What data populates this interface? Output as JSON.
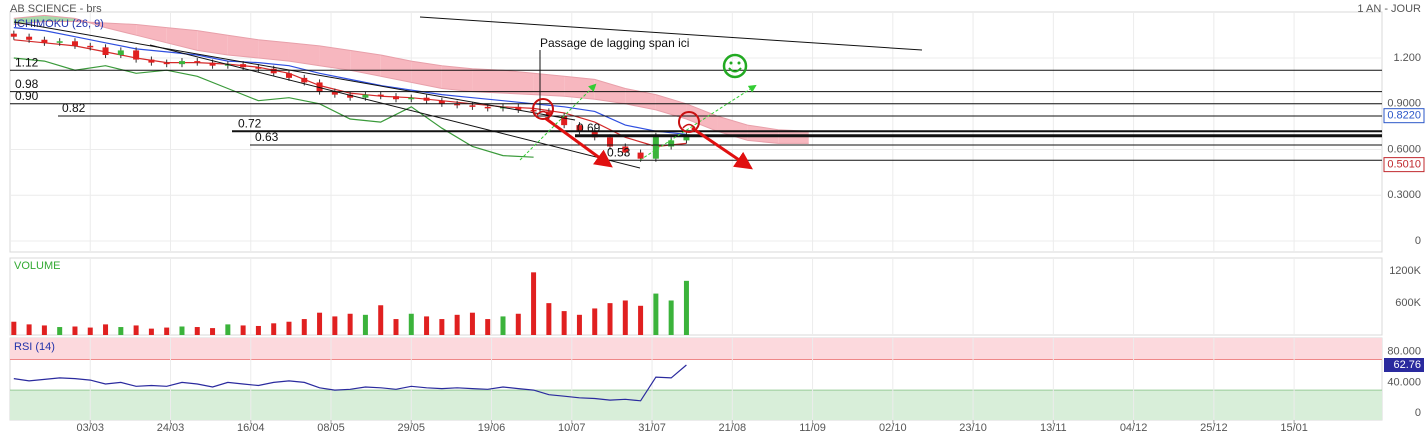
{
  "chart_data": [
    {
      "type": "candlestick",
      "title": "AB SCIENCE - brs",
      "subtitle": "1 AN - JOUR",
      "panel_title": "ICHIMOKU (26, 9)",
      "annotations": [
        "Passage de lagging span ici"
      ],
      "xlim": [
        -1,
        358
      ],
      "ylim": [
        -0.072,
        1.502
      ],
      "yticks": [
        0,
        {
          "value": 0.3,
          "label": "0.3000"
        },
        {
          "value": 0.6,
          "label": "0.6000"
        },
        {
          "value": 0.9,
          "label": "0.9000"
        },
        {
          "value": 1.2,
          "label": "1.200"
        }
      ],
      "grid": true,
      "up_color": "#3bb33b",
      "down_color": "#e02020",
      "candles": {
        "x": [
          0,
          4,
          8,
          12,
          16,
          20,
          24,
          28,
          32,
          36,
          40,
          44,
          48,
          52,
          56,
          60,
          64,
          68,
          72,
          76,
          80,
          84,
          88,
          92,
          96,
          100,
          104,
          108,
          112,
          116,
          120,
          124,
          128,
          132,
          136,
          140,
          144,
          148,
          152,
          156,
          160,
          164,
          168,
          172,
          176
        ],
        "open": [
          1.36,
          1.34,
          1.32,
          1.3,
          1.31,
          1.28,
          1.27,
          1.22,
          1.25,
          1.19,
          1.17,
          1.16,
          1.18,
          1.17,
          1.15,
          1.16,
          1.14,
          1.13,
          1.1,
          1.07,
          1.04,
          0.98,
          0.96,
          0.94,
          0.96,
          0.95,
          0.93,
          0.94,
          0.92,
          0.9,
          0.89,
          0.88,
          0.87,
          0.88,
          0.86,
          0.85,
          0.82,
          0.76,
          0.72,
          0.68,
          0.62,
          0.58,
          0.54,
          0.62,
          0.66
        ],
        "high": [
          1.38,
          1.36,
          1.34,
          1.33,
          1.33,
          1.3,
          1.29,
          1.27,
          1.27,
          1.21,
          1.19,
          1.2,
          1.2,
          1.19,
          1.18,
          1.18,
          1.16,
          1.15,
          1.12,
          1.09,
          1.06,
          1.0,
          0.98,
          0.98,
          0.98,
          0.97,
          0.96,
          0.96,
          0.94,
          0.92,
          0.91,
          0.9,
          0.9,
          0.9,
          0.88,
          0.87,
          0.84,
          0.78,
          0.74,
          0.7,
          0.64,
          0.6,
          0.71,
          0.68,
          0.72
        ],
        "low": [
          1.32,
          1.3,
          1.28,
          1.28,
          1.26,
          1.25,
          1.2,
          1.2,
          1.17,
          1.15,
          1.14,
          1.14,
          1.15,
          1.13,
          1.13,
          1.12,
          1.11,
          1.08,
          1.05,
          1.02,
          0.96,
          0.94,
          0.92,
          0.92,
          0.93,
          0.91,
          0.91,
          0.9,
          0.88,
          0.87,
          0.86,
          0.85,
          0.85,
          0.84,
          0.83,
          0.8,
          0.74,
          0.7,
          0.66,
          0.6,
          0.56,
          0.52,
          0.52,
          0.6,
          0.64
        ],
        "close": [
          1.34,
          1.32,
          1.3,
          1.31,
          1.28,
          1.27,
          1.22,
          1.25,
          1.19,
          1.17,
          1.16,
          1.18,
          1.17,
          1.15,
          1.16,
          1.14,
          1.13,
          1.1,
          1.07,
          1.04,
          0.98,
          0.96,
          0.94,
          0.96,
          0.95,
          0.93,
          0.94,
          0.92,
          0.9,
          0.89,
          0.88,
          0.87,
          0.88,
          0.86,
          0.85,
          0.82,
          0.76,
          0.72,
          0.68,
          0.62,
          0.58,
          0.54,
          0.69,
          0.66,
          0.7
        ]
      },
      "lines": [
        {
          "color": "#d42a2a",
          "x": [
            0,
            8,
            16,
            24,
            32,
            40,
            48,
            56,
            64,
            72,
            80,
            88,
            96,
            104,
            112,
            120,
            128,
            136,
            144,
            152,
            160,
            168,
            176
          ],
          "values": [
            1.32,
            1.3,
            1.28,
            1.24,
            1.2,
            1.17,
            1.17,
            1.16,
            1.14,
            1.1,
            1.02,
            0.97,
            0.95,
            0.94,
            0.92,
            0.9,
            0.88,
            0.87,
            0.84,
            0.78,
            0.68,
            0.62,
            0.64
          ]
        },
        {
          "color": "#2f4fe0",
          "x": [
            0,
            8,
            16,
            24,
            32,
            40,
            48,
            56,
            64,
            72,
            80,
            88,
            96,
            104,
            112,
            120,
            128,
            136,
            144,
            152,
            160,
            168,
            176
          ],
          "values": [
            1.4,
            1.38,
            1.34,
            1.3,
            1.26,
            1.24,
            1.22,
            1.18,
            1.17,
            1.15,
            1.1,
            1.06,
            1.02,
            0.99,
            0.96,
            0.94,
            0.92,
            0.9,
            0.88,
            0.85,
            0.76,
            0.72,
            0.7
          ]
        },
        {
          "color": "#3a9a3a",
          "x": [
            0,
            8,
            16,
            24,
            32,
            40,
            48,
            56,
            64,
            72,
            80,
            88,
            96,
            104,
            112,
            120,
            128,
            136
          ],
          "values": [
            1.2,
            1.18,
            1.12,
            1.15,
            1.1,
            1.12,
            1.08,
            1.0,
            0.92,
            0.94,
            0.9,
            0.8,
            0.78,
            0.88,
            0.74,
            0.62,
            0.56,
            0.55
          ]
        }
      ],
      "cloud": {
        "up_color": "#a8d8a8",
        "down_color": "#f7b7bf",
        "x": [
          0,
          8,
          16,
          24,
          32,
          40,
          48,
          56,
          64,
          72,
          80,
          88,
          96,
          104,
          112,
          120,
          128,
          136,
          144,
          152,
          160,
          168,
          176,
          184,
          192,
          200,
          208
        ],
        "span_a": [
          1.46,
          1.48,
          1.46,
          1.4,
          1.35,
          1.3,
          1.25,
          1.22,
          1.2,
          1.18,
          1.15,
          1.12,
          1.08,
          1.04,
          1.0,
          0.98,
          0.97,
          0.96,
          0.95,
          0.93,
          0.9,
          0.86,
          0.8,
          0.72,
          0.66,
          0.64,
          0.64
        ],
        "span_b": [
          1.42,
          1.44,
          1.44,
          1.43,
          1.42,
          1.4,
          1.38,
          1.35,
          1.32,
          1.3,
          1.28,
          1.25,
          1.22,
          1.18,
          1.15,
          1.13,
          1.12,
          1.1,
          1.08,
          1.06,
          1.0,
          0.96,
          0.9,
          0.82,
          0.76,
          0.73,
          0.72
        ]
      },
      "levels": [
        1.12,
        0.98,
        {
          "value": 0.9,
          "label": "0.90"
        },
        0.82,
        0.72,
        0.63,
        0.69,
        0.53
      ],
      "markers": [
        {
          "value": 0.822,
          "label": "0.8220",
          "color": "#2b57c8"
        },
        {
          "value": 0.501,
          "label": "0.5010",
          "color": "#c0282d"
        }
      ]
    },
    {
      "type": "bar",
      "panel_title": "VOLUME",
      "xlim": [
        -1,
        358
      ],
      "ylim": [
        0,
        1450000
      ],
      "yticks": [
        {
          "value": 600000,
          "label": "600K"
        },
        {
          "value": 1200000,
          "label": "1200K"
        }
      ],
      "up_color": "#3bb33b",
      "down_color": "#e02020",
      "x": [
        0,
        4,
        8,
        12,
        16,
        20,
        24,
        28,
        32,
        36,
        40,
        44,
        48,
        52,
        56,
        60,
        64,
        68,
        72,
        76,
        80,
        84,
        88,
        92,
        96,
        100,
        104,
        108,
        112,
        116,
        120,
        124,
        128,
        132,
        136,
        140,
        144,
        148,
        152,
        156,
        160,
        164,
        168,
        172,
        176
      ],
      "values": [
        250000,
        200000,
        180000,
        150000,
        160000,
        140000,
        200000,
        150000,
        180000,
        120000,
        140000,
        160000,
        150000,
        130000,
        200000,
        180000,
        170000,
        220000,
        250000,
        300000,
        420000,
        350000,
        400000,
        380000,
        560000,
        300000,
        400000,
        350000,
        300000,
        380000,
        420000,
        300000,
        350000,
        400000,
        1180000,
        600000,
        450000,
        380000,
        500000,
        600000,
        650000,
        550000,
        780000,
        650000,
        1020000
      ]
    },
    {
      "type": "line",
      "panel_title": "RSI (14)",
      "xlim": [
        -1,
        358
      ],
      "ylim": [
        -9,
        98
      ],
      "yticks": [
        0,
        {
          "value": 40,
          "label": "40.000"
        },
        {
          "value": 80,
          "label": "80.000"
        }
      ],
      "xticks": [
        {
          "value": 20,
          "label": "03/03"
        },
        {
          "value": 41,
          "label": "24/03"
        },
        {
          "value": 62,
          "label": "16/04"
        },
        {
          "value": 83,
          "label": "08/05"
        },
        {
          "value": 104,
          "label": "29/05"
        },
        {
          "value": 125,
          "label": "19/06"
        },
        {
          "value": 146,
          "label": "10/07"
        },
        {
          "value": 167,
          "label": "31/07"
        },
        {
          "value": 188,
          "label": "21/08"
        },
        {
          "value": 209,
          "label": "11/09"
        },
        {
          "value": 230,
          "label": "02/10"
        },
        {
          "value": 251,
          "label": "23/10"
        },
        {
          "value": 272,
          "label": "13/11"
        },
        {
          "value": 293,
          "label": "04/12"
        },
        {
          "value": 314,
          "label": "25/12"
        },
        {
          "value": 335,
          "label": "15/01"
        }
      ],
      "overbought": 70,
      "oversold": 30,
      "overbought_color": "#fcd9dd",
      "oversold_color": "#d8eed9",
      "color": "#2a2a9e",
      "x": [
        0,
        4,
        8,
        12,
        16,
        20,
        24,
        28,
        32,
        36,
        40,
        44,
        48,
        52,
        56,
        60,
        64,
        68,
        72,
        76,
        80,
        84,
        88,
        92,
        96,
        100,
        104,
        108,
        112,
        116,
        120,
        124,
        128,
        132,
        136,
        140,
        144,
        148,
        152,
        156,
        160,
        164,
        168,
        172,
        176
      ],
      "values": [
        45,
        42,
        44,
        46,
        45,
        43,
        38,
        40,
        35,
        36,
        35,
        40,
        38,
        34,
        40,
        38,
        36,
        40,
        42,
        40,
        33,
        30,
        31,
        34,
        33,
        31,
        35,
        33,
        32,
        33,
        32,
        31,
        34,
        32,
        30,
        24,
        22,
        20,
        19,
        17,
        18,
        16,
        47,
        46,
        62.76
      ]
    }
  ]
}
